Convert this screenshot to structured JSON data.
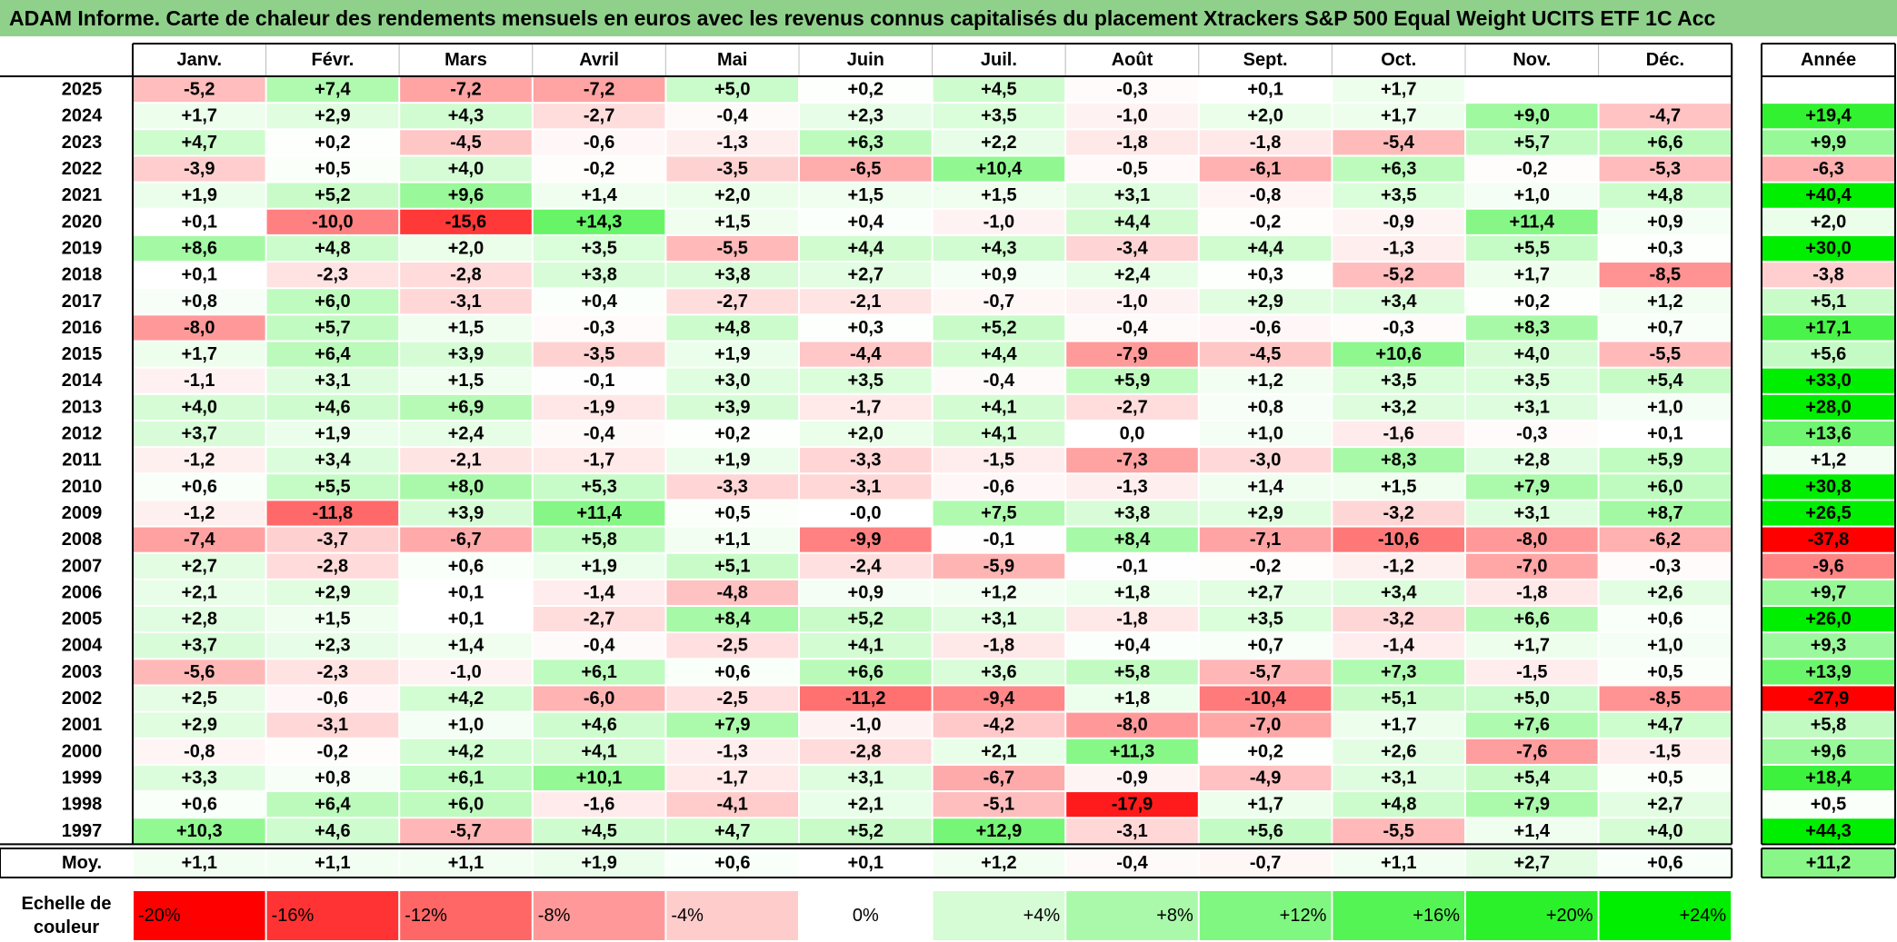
{
  "title": "ADAM Informe. Carte de chaleur des rendements mensuels en euros avec les revenus connus capitalisés du placement Xtrackers S&P 500 Equal Weight UCITS ETF 1C Acc",
  "chart_data": {
    "type": "heatmap",
    "title": "ADAM Informe. Carte de chaleur des rendements mensuels en euros avec les revenus connus capitalisés du placement Xtrackers S&P 500 Equal Weight UCITS ETF 1C Acc",
    "columns": [
      "Janv.",
      "Févr.",
      "Mars",
      "Avril",
      "Mai",
      "Juin",
      "Juil.",
      "Août",
      "Sept.",
      "Oct.",
      "Nov.",
      "Déc."
    ],
    "year_header": "Année",
    "rows": [
      {
        "year": "2025",
        "values": [
          "-5,2",
          "+7,4",
          "-7,2",
          "-7,2",
          "+5,0",
          "+0,2",
          "+4,5",
          "-0,3",
          "+0,1",
          "+1,7",
          "",
          ""
        ],
        "annual": ""
      },
      {
        "year": "2024",
        "values": [
          "+1,7",
          "+2,9",
          "+4,3",
          "-2,7",
          "-0,4",
          "+2,3",
          "+3,5",
          "-1,0",
          "+2,0",
          "+1,7",
          "+9,0",
          "-4,7"
        ],
        "annual": "+19,4"
      },
      {
        "year": "2023",
        "values": [
          "+4,7",
          "+0,2",
          "-4,5",
          "-0,6",
          "-1,3",
          "+6,3",
          "+2,2",
          "-1,8",
          "-1,8",
          "-5,4",
          "+5,7",
          "+6,6"
        ],
        "annual": "+9,9"
      },
      {
        "year": "2022",
        "values": [
          "-3,9",
          "+0,5",
          "+4,0",
          "-0,2",
          "-3,5",
          "-6,5",
          "+10,4",
          "-0,5",
          "-6,1",
          "+6,3",
          "-0,2",
          "-5,3"
        ],
        "annual": "-6,3"
      },
      {
        "year": "2021",
        "values": [
          "+1,9",
          "+5,2",
          "+9,6",
          "+1,4",
          "+2,0",
          "+1,5",
          "+1,5",
          "+3,1",
          "-0,8",
          "+3,5",
          "+1,0",
          "+4,8"
        ],
        "annual": "+40,4"
      },
      {
        "year": "2020",
        "values": [
          "+0,1",
          "-10,0",
          "-15,6",
          "+14,3",
          "+1,5",
          "+0,4",
          "-1,0",
          "+4,4",
          "-0,2",
          "-0,9",
          "+11,4",
          "+0,9"
        ],
        "annual": "+2,0"
      },
      {
        "year": "2019",
        "values": [
          "+8,6",
          "+4,8",
          "+2,0",
          "+3,5",
          "-5,5",
          "+4,4",
          "+4,3",
          "-3,4",
          "+4,4",
          "-1,3",
          "+5,5",
          "+0,3"
        ],
        "annual": "+30,0"
      },
      {
        "year": "2018",
        "values": [
          "+0,1",
          "-2,3",
          "-2,8",
          "+3,8",
          "+3,8",
          "+2,7",
          "+0,9",
          "+2,4",
          "+0,3",
          "-5,2",
          "+1,7",
          "-8,5"
        ],
        "annual": "-3,8"
      },
      {
        "year": "2017",
        "values": [
          "+0,8",
          "+6,0",
          "-3,1",
          "+0,4",
          "-2,7",
          "-2,1",
          "-0,7",
          "-1,0",
          "+2,9",
          "+3,4",
          "+0,2",
          "+1,2"
        ],
        "annual": "+5,1"
      },
      {
        "year": "2016",
        "values": [
          "-8,0",
          "+5,7",
          "+1,5",
          "-0,3",
          "+4,8",
          "+0,3",
          "+5,2",
          "-0,4",
          "-0,6",
          "-0,3",
          "+8,3",
          "+0,7"
        ],
        "annual": "+17,1"
      },
      {
        "year": "2015",
        "values": [
          "+1,7",
          "+6,4",
          "+3,9",
          "-3,5",
          "+1,9",
          "-4,4",
          "+4,4",
          "-7,9",
          "-4,5",
          "+10,6",
          "+4,0",
          "-5,5"
        ],
        "annual": "+5,6"
      },
      {
        "year": "2014",
        "values": [
          "-1,1",
          "+3,1",
          "+1,5",
          "-0,1",
          "+3,0",
          "+3,5",
          "-0,4",
          "+5,9",
          "+1,2",
          "+3,5",
          "+3,5",
          "+5,4"
        ],
        "annual": "+33,0"
      },
      {
        "year": "2013",
        "values": [
          "+4,0",
          "+4,6",
          "+6,9",
          "-1,9",
          "+3,9",
          "-1,7",
          "+4,1",
          "-2,7",
          "+0,8",
          "+3,2",
          "+3,1",
          "+1,0"
        ],
        "annual": "+28,0"
      },
      {
        "year": "2012",
        "values": [
          "+3,7",
          "+1,9",
          "+2,4",
          "-0,4",
          "+0,2",
          "+2,0",
          "+4,1",
          "0,0",
          "+1,0",
          "-1,6",
          "-0,3",
          "+0,1"
        ],
        "annual": "+13,6"
      },
      {
        "year": "2011",
        "values": [
          "-1,2",
          "+3,4",
          "-2,1",
          "-1,7",
          "+1,9",
          "-3,3",
          "-1,5",
          "-7,3",
          "-3,0",
          "+8,3",
          "+2,8",
          "+5,9"
        ],
        "annual": "+1,2"
      },
      {
        "year": "2010",
        "values": [
          "+0,6",
          "+5,5",
          "+8,0",
          "+5,3",
          "-3,3",
          "-3,1",
          "-0,6",
          "-1,3",
          "+1,4",
          "+1,5",
          "+7,9",
          "+6,0"
        ],
        "annual": "+30,8"
      },
      {
        "year": "2009",
        "values": [
          "-1,2",
          "-11,8",
          "+3,9",
          "+11,4",
          "+0,5",
          "-0,0",
          "+7,5",
          "+3,8",
          "+2,9",
          "-3,2",
          "+3,1",
          "+8,7"
        ],
        "annual": "+26,5"
      },
      {
        "year": "2008",
        "values": [
          "-7,4",
          "-3,7",
          "-6,7",
          "+5,8",
          "+1,1",
          "-9,9",
          "-0,1",
          "+8,4",
          "-7,1",
          "-10,6",
          "-8,0",
          "-6,2"
        ],
        "annual": "-37,8"
      },
      {
        "year": "2007",
        "values": [
          "+2,7",
          "-2,8",
          "+0,6",
          "+1,9",
          "+5,1",
          "-2,4",
          "-5,9",
          "-0,1",
          "-0,2",
          "-1,2",
          "-7,0",
          "-0,3"
        ],
        "annual": "-9,6"
      },
      {
        "year": "2006",
        "values": [
          "+2,1",
          "+2,9",
          "+0,1",
          "-1,4",
          "-4,8",
          "+0,9",
          "+1,2",
          "+1,8",
          "+2,7",
          "+3,4",
          "-1,8",
          "+2,6"
        ],
        "annual": "+9,7"
      },
      {
        "year": "2005",
        "values": [
          "+2,8",
          "+1,5",
          "+0,1",
          "-2,7",
          "+8,4",
          "+5,2",
          "+3,1",
          "-1,8",
          "+3,5",
          "-3,2",
          "+6,6",
          "+0,6"
        ],
        "annual": "+26,0"
      },
      {
        "year": "2004",
        "values": [
          "+3,7",
          "+2,3",
          "+1,4",
          "-0,4",
          "-2,5",
          "+4,1",
          "-1,8",
          "+0,4",
          "+0,7",
          "-1,4",
          "+1,7",
          "+1,0"
        ],
        "annual": "+9,3"
      },
      {
        "year": "2003",
        "values": [
          "-5,6",
          "-2,3",
          "-1,0",
          "+6,1",
          "+0,6",
          "+6,6",
          "+3,6",
          "+5,8",
          "-5,7",
          "+7,3",
          "-1,5",
          "+0,5"
        ],
        "annual": "+13,9"
      },
      {
        "year": "2002",
        "values": [
          "+2,5",
          "-0,6",
          "+4,2",
          "-6,0",
          "-2,5",
          "-11,2",
          "-9,4",
          "+1,8",
          "-10,4",
          "+5,1",
          "+5,0",
          "-8,5"
        ],
        "annual": "-27,9"
      },
      {
        "year": "2001",
        "values": [
          "+2,9",
          "-3,1",
          "+1,0",
          "+4,6",
          "+7,9",
          "-1,0",
          "-4,2",
          "-8,0",
          "-7,0",
          "+1,7",
          "+7,6",
          "+4,7"
        ],
        "annual": "+5,8"
      },
      {
        "year": "2000",
        "values": [
          "-0,8",
          "-0,2",
          "+4,2",
          "+4,1",
          "-1,3",
          "-2,8",
          "+2,1",
          "+11,3",
          "+0,2",
          "+2,6",
          "-7,6",
          "-1,5"
        ],
        "annual": "+9,6"
      },
      {
        "year": "1999",
        "values": [
          "+3,3",
          "+0,8",
          "+6,1",
          "+10,1",
          "-1,7",
          "+3,1",
          "-6,7",
          "-0,9",
          "-4,9",
          "+3,1",
          "+5,4",
          "+0,5"
        ],
        "annual": "+18,4"
      },
      {
        "year": "1998",
        "values": [
          "+0,6",
          "+6,4",
          "+6,0",
          "-1,6",
          "-4,1",
          "+2,1",
          "-5,1",
          "-17,9",
          "+1,7",
          "+4,8",
          "+7,9",
          "+2,7"
        ],
        "annual": "+0,5"
      },
      {
        "year": "1997",
        "values": [
          "+10,3",
          "+4,6",
          "-5,7",
          "+4,5",
          "+4,7",
          "+5,2",
          "+12,9",
          "-3,1",
          "+5,6",
          "-5,5",
          "+1,4",
          "+4,0"
        ],
        "annual": "+44,3"
      }
    ],
    "average": {
      "label": "Moy.",
      "values": [
        "+1,1",
        "+1,1",
        "+1,1",
        "+1,9",
        "+0,6",
        "+0,1",
        "+1,2",
        "-0,4",
        "-0,7",
        "+1,1",
        "+2,7",
        "+0,6"
      ],
      "annual": "+11,2"
    },
    "legend": {
      "label_line1": "Echelle de",
      "label_line2": "couleur",
      "items": [
        {
          "label": "-20%",
          "value": -20
        },
        {
          "label": "-16%",
          "value": -16
        },
        {
          "label": "-12%",
          "value": -12
        },
        {
          "label": "-8%",
          "value": -8
        },
        {
          "label": "-4%",
          "value": -4
        },
        {
          "label": "0%",
          "value": 0
        },
        {
          "label": "+4%",
          "value": 4
        },
        {
          "label": "+8%",
          "value": 8
        },
        {
          "label": "+12%",
          "value": 12
        },
        {
          "label": "+16%",
          "value": 16
        },
        {
          "label": "+20%",
          "value": 20
        },
        {
          "label": "+24%",
          "value": 24
        }
      ]
    },
    "colors": {
      "title_bg": "#8fd18b",
      "negative_max": "#ff0000",
      "neutral": "#ffffff",
      "positive_max": "#00ee00"
    },
    "scale": {
      "min": -20,
      "max": 24
    }
  }
}
